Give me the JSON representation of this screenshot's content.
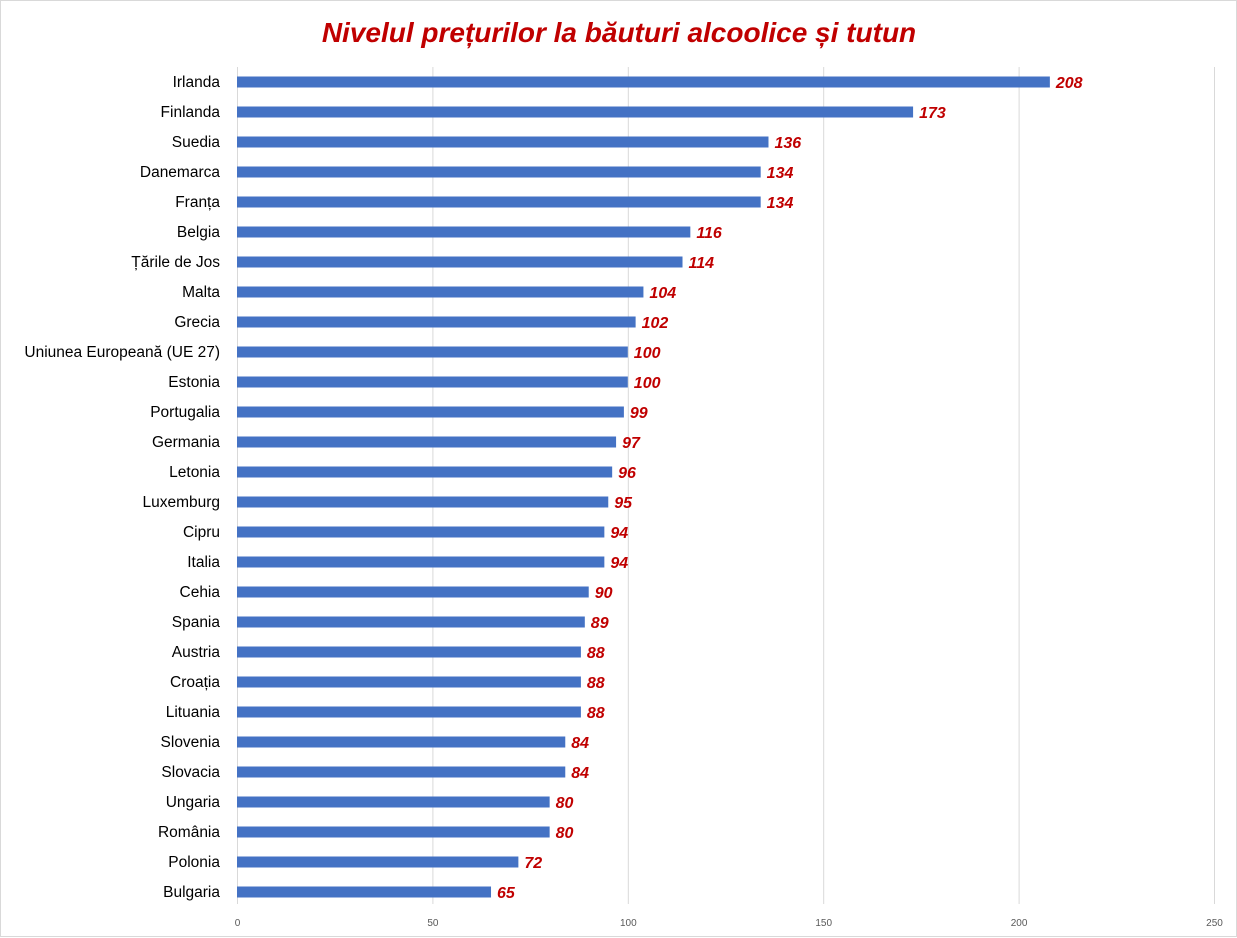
{
  "chart_data": {
    "type": "bar",
    "orientation": "horizontal",
    "title": "Nivelul prețurilor la băuturi alcoolice și tutun",
    "xlabel": "",
    "ylabel": "",
    "xlim": [
      0,
      250
    ],
    "xticks": [
      0,
      50,
      100,
      150,
      200,
      250
    ],
    "grid": true,
    "categories": [
      "Irlanda",
      "Finlanda",
      "Suedia",
      "Danemarca",
      "Franța",
      "Belgia",
      "Țările de Jos",
      "Malta",
      "Grecia",
      "Uniunea Europeană (UE 27)",
      "Estonia",
      "Portugalia",
      "Germania",
      "Letonia",
      "Luxemburg",
      "Cipru",
      "Italia",
      "Cehia",
      "Spania",
      "Austria",
      "Croația",
      "Lituania",
      "Slovenia",
      "Slovacia",
      "Ungaria",
      "România",
      "Polonia",
      "Bulgaria"
    ],
    "values": [
      208,
      173,
      136,
      134,
      134,
      116,
      114,
      104,
      102,
      100,
      100,
      99,
      97,
      96,
      95,
      94,
      94,
      90,
      89,
      88,
      88,
      88,
      84,
      84,
      80,
      80,
      72,
      65
    ],
    "colors": {
      "bar": "#4472C4",
      "label": "#C00000",
      "title": "#C00000",
      "grid": "#D9D9D9"
    }
  }
}
